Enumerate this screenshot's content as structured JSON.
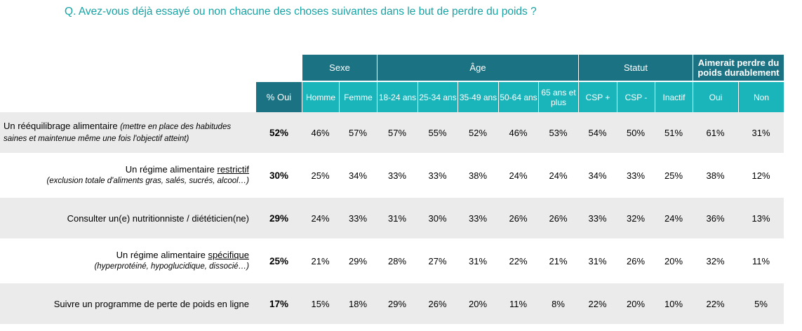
{
  "question": "Q. Avez-vous déjà essayé ou non chacune des choses suivantes dans le but de perdre du poids ?",
  "groups": {
    "sexe": "Sexe",
    "age": "Âge",
    "statut": "Statut",
    "aimerait": "Aimerait perdre du poids durablement"
  },
  "columns": {
    "oui": "% Oui",
    "homme": "Homme",
    "femme": "Femme",
    "a18": "18-24 ans",
    "a25": "25-34 ans",
    "a35": "35-49 ans",
    "a50": "50-64 ans",
    "a65": "65 ans et plus",
    "cspp": "CSP +",
    "cspm": "CSP -",
    "inactif": "Inactif",
    "yes": "Oui",
    "no": "Non"
  },
  "rows": [
    {
      "label_main": "Un rééquilibrage alimentaire ",
      "label_sub": "(mettre en place des habitudes saines et maintenue même une fois l'objectif atteint)",
      "values": [
        "52%",
        "46%",
        "57%",
        "57%",
        "55%",
        "52%",
        "46%",
        "53%",
        "54%",
        "50%",
        "51%",
        "61%",
        "31%"
      ]
    },
    {
      "label_main": "Un régime alimentaire ",
      "label_ul": "restrictif",
      "label_sub": "(exclusion totale d'aliments gras, salés, sucrés, alcool…)",
      "values": [
        "30%",
        "25%",
        "34%",
        "33%",
        "33%",
        "38%",
        "24%",
        "24%",
        "34%",
        "33%",
        "25%",
        "38%",
        "12%"
      ]
    },
    {
      "label_main": "Consulter un(e) nutritionniste / diététicien(ne)",
      "values": [
        "29%",
        "24%",
        "33%",
        "31%",
        "30%",
        "33%",
        "26%",
        "26%",
        "33%",
        "32%",
        "24%",
        "36%",
        "13%"
      ]
    },
    {
      "label_main": "Un régime alimentaire ",
      "label_ul": "spécifique",
      "label_sub": "(hyperprotéiné, hypoglucidique, dissocié…)",
      "values": [
        "25%",
        "21%",
        "29%",
        "28%",
        "27%",
        "31%",
        "22%",
        "21%",
        "31%",
        "26%",
        "20%",
        "32%",
        "11%"
      ]
    },
    {
      "label_main": "Suivre un programme de perte de poids en ligne",
      "values": [
        "17%",
        "15%",
        "18%",
        "29%",
        "26%",
        "20%",
        "11%",
        "8%",
        "22%",
        "20%",
        "10%",
        "22%",
        "5%"
      ]
    }
  ]
}
